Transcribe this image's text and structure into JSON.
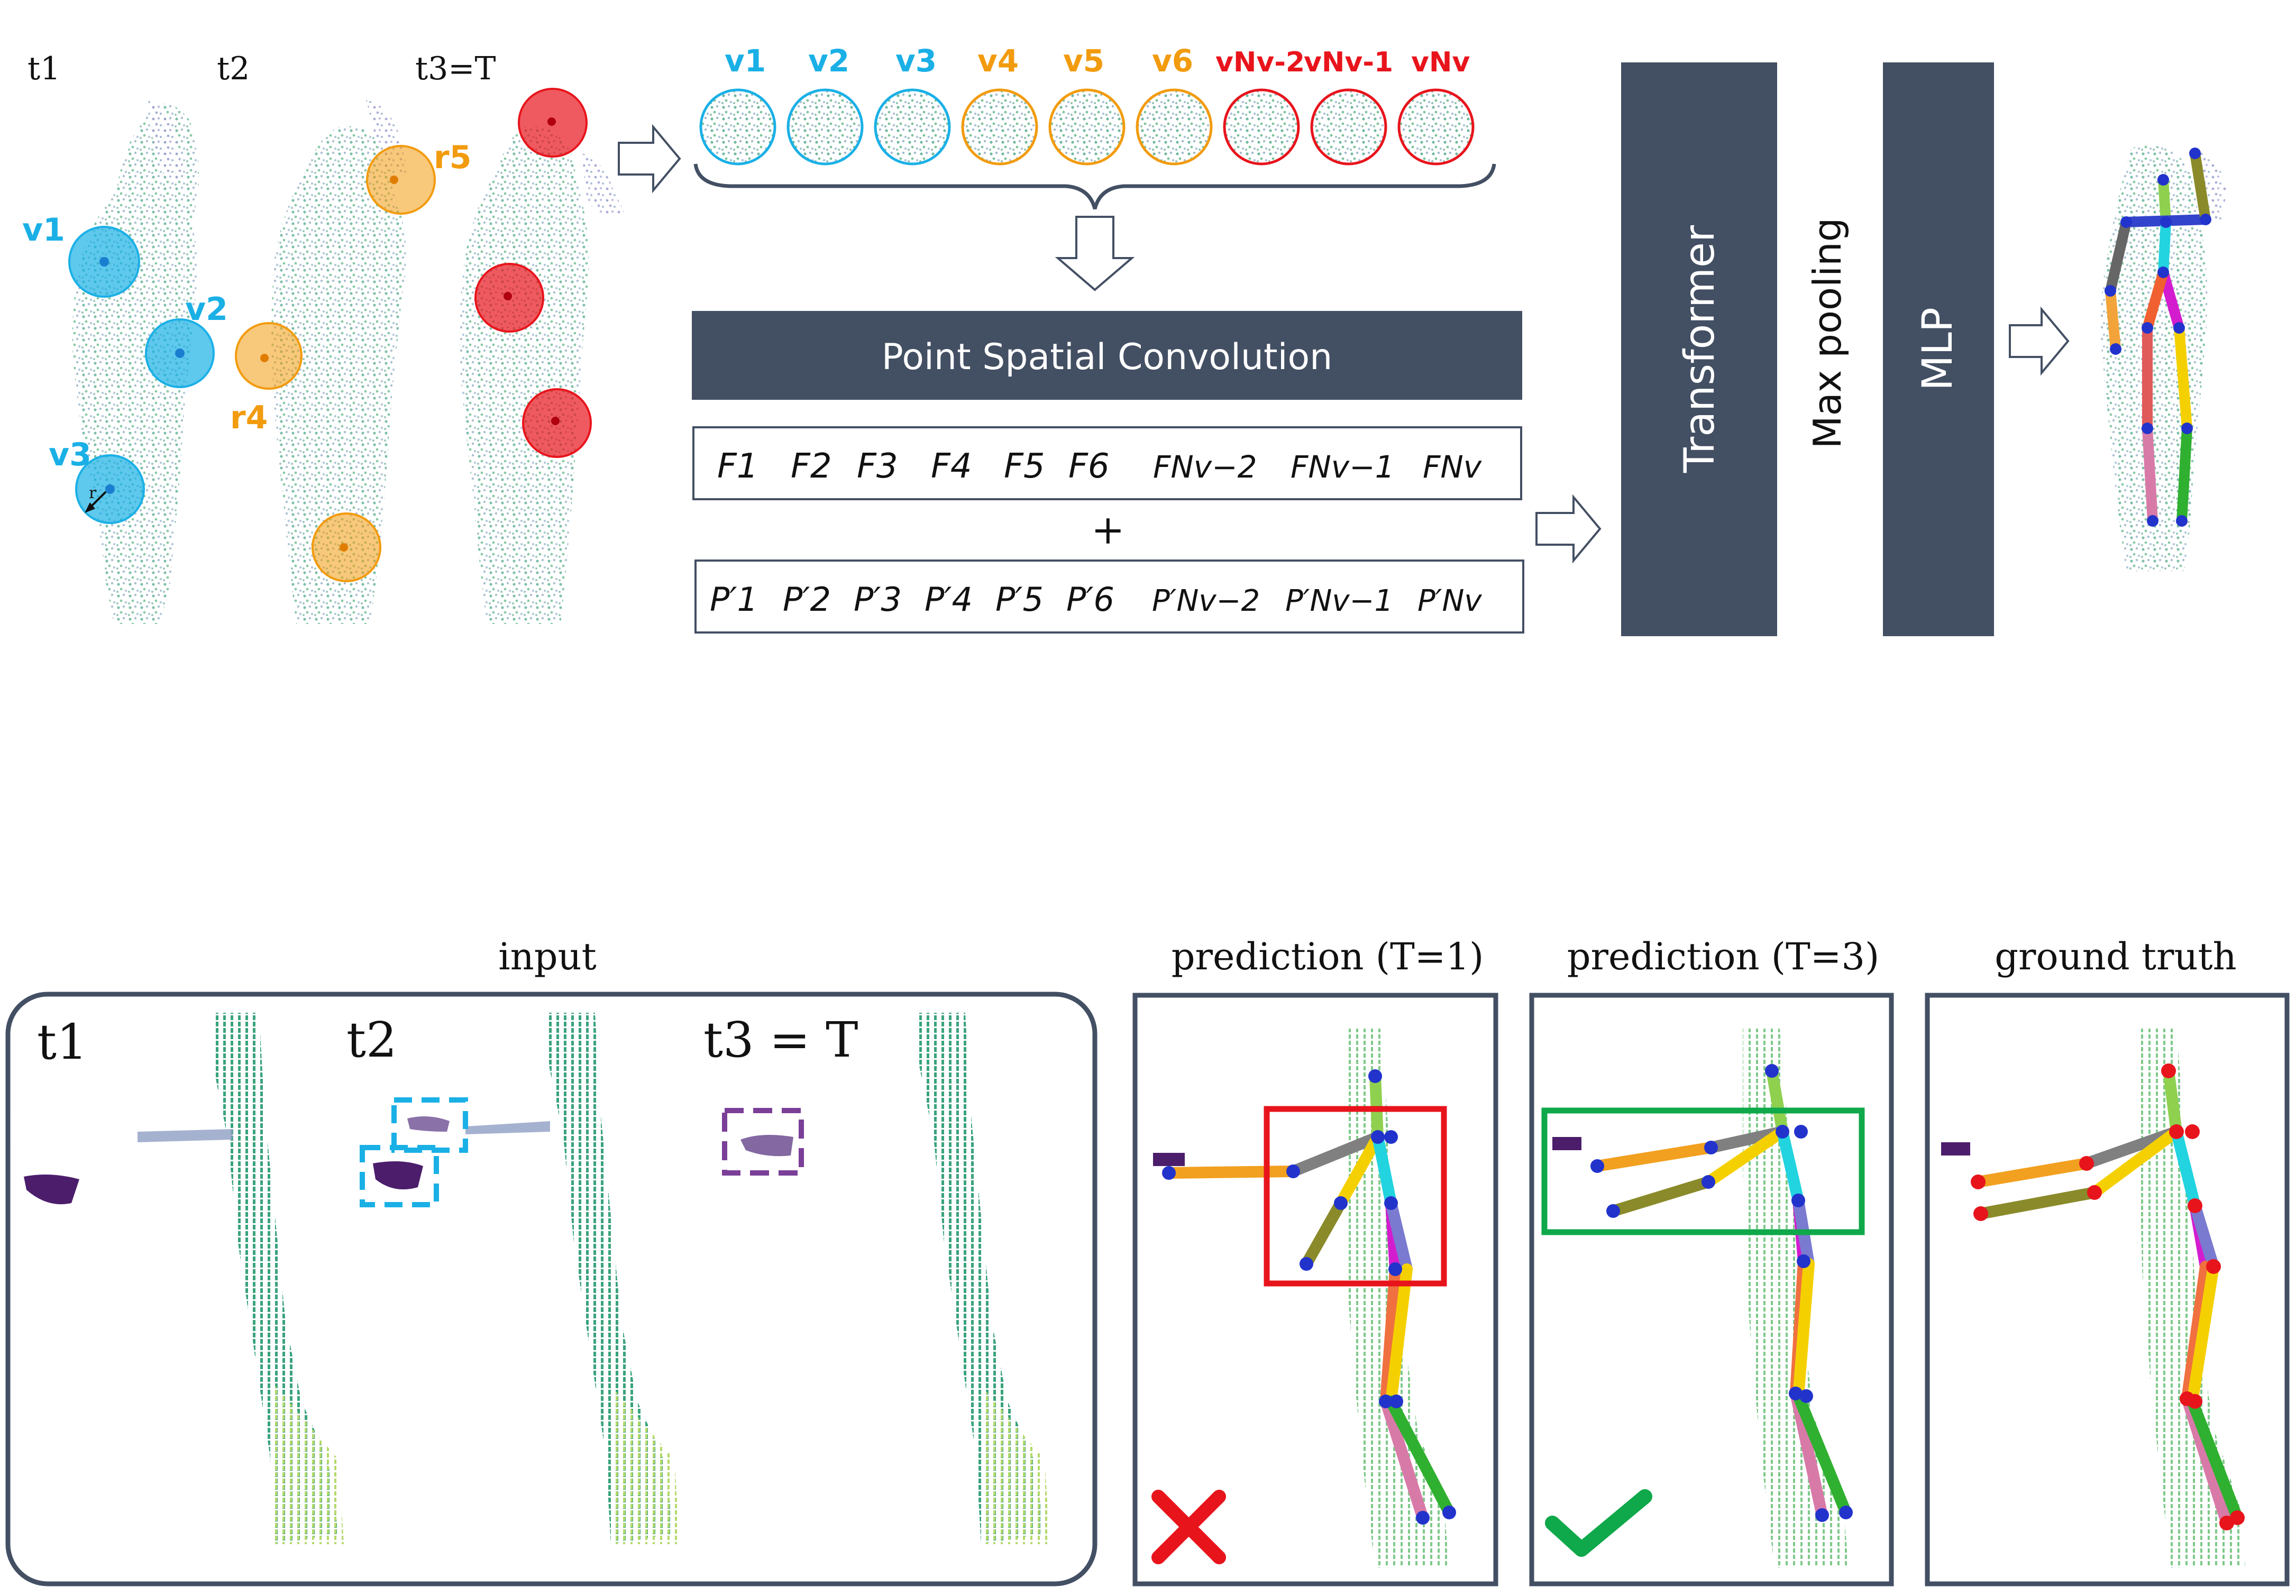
{
  "top": {
    "time_labels": [
      "t1",
      "t2",
      "t3=T"
    ],
    "cluster_labels": [
      {
        "text": "v1",
        "color": "#1ab0e6"
      },
      {
        "text": "v2",
        "color": "#1ab0e6"
      },
      {
        "text": "v3",
        "color": "#1ab0e6"
      },
      {
        "text": "r4",
        "color": "#f29b0e"
      },
      {
        "text": "r5",
        "color": "#f29b0e"
      }
    ],
    "row_labels": [
      {
        "text": "v1",
        "color": "#1ab0e6"
      },
      {
        "text": "v2",
        "color": "#1ab0e6"
      },
      {
        "text": "v3",
        "color": "#1ab0e6"
      },
      {
        "text": "v4",
        "color": "#f29b0e"
      },
      {
        "text": "v5",
        "color": "#f29b0e"
      },
      {
        "text": "v6",
        "color": "#f29b0e"
      },
      {
        "text": "vNv-2",
        "color": "#e8141c"
      },
      {
        "text": "vNv-1",
        "color": "#e8141c"
      },
      {
        "text": "vNv",
        "color": "#e8141c"
      }
    ],
    "psc_label": "Point Spatial Convolution",
    "features": [
      "F1",
      "F2",
      "F3",
      "F4",
      "F5",
      "F6",
      "FNv−2",
      "FNv−1",
      "FNv"
    ],
    "plus": "+",
    "positions": [
      "P′1",
      "P′2",
      "P′3",
      "P′4",
      "P′5",
      "P′6",
      "P′Nv−2",
      "P′Nv−1",
      "P′Nv"
    ],
    "transformer": "Transformer",
    "max_pooling": "Max pooling",
    "mlp": "MLP",
    "r_label": "r"
  },
  "bottom": {
    "input_title": "input",
    "input_time_labels": [
      "t1",
      "t2",
      "t3 = T"
    ],
    "panels": [
      {
        "title": "prediction (T=1)",
        "mark": "cross",
        "mark_color": "#e8141c"
      },
      {
        "title": "prediction (T=3)",
        "mark": "check",
        "mark_color": "#0fa84a"
      },
      {
        "title": "ground truth",
        "mark": "none"
      }
    ]
  },
  "colors": {
    "block": "#434f63",
    "blue": "#1ab0e6",
    "orange": "#f29b0e",
    "red": "#e8141c",
    "purple": "#7b3f98",
    "green_box": "#0fa84a"
  }
}
